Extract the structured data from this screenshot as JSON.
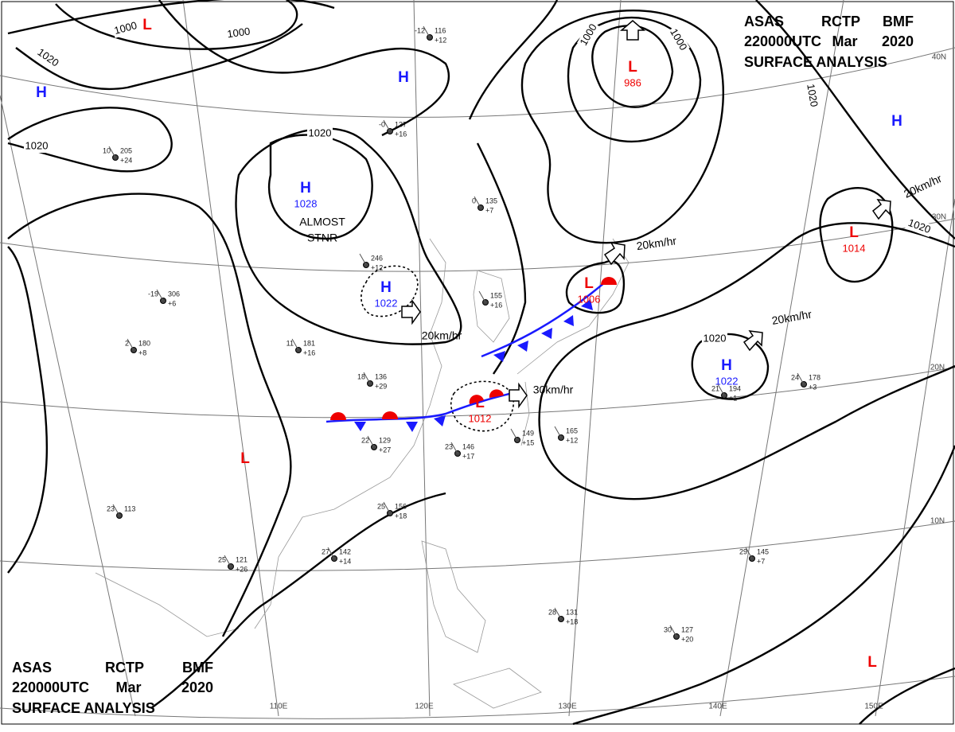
{
  "header": {
    "line1": [
      "ASAS",
      "RCTP",
      "BMF"
    ],
    "line2": [
      "220000UTC",
      "Mar",
      "2020"
    ],
    "line3": "SURFACE ANALYSIS"
  },
  "systems": [
    {
      "type": "L"
    },
    {
      "type": "H"
    },
    {
      "type": "H"
    },
    {
      "type": "H",
      "pressure": "1028"
    },
    {
      "type": "H",
      "pressure": "1022"
    },
    {
      "type": "L",
      "pressure": "986"
    },
    {
      "type": "L",
      "pressure": "1006"
    },
    {
      "type": "L",
      "pressure": "1014"
    },
    {
      "type": "H",
      "pressure": "1022"
    },
    {
      "type": "L",
      "pressure": "1012"
    },
    {
      "type": "L"
    },
    {
      "type": "L"
    },
    {
      "type": "H"
    }
  ],
  "isobar_labels": [
    "1000",
    "1000",
    "1020",
    "1020",
    "1020",
    "1000",
    "1000",
    "1020",
    "1020",
    "1020"
  ],
  "motion_labels": [
    "20km/hr",
    "30km/hr",
    "20km/hr",
    "20km/hr",
    "20km/hr"
  ],
  "note": [
    "ALMOST",
    "STNR"
  ],
  "latitude_labels": [
    "40N",
    "30N",
    "20N",
    "10N"
  ],
  "longitude_labels": [
    "110E",
    "120E",
    "130E",
    "140E",
    "150E"
  ],
  "stations": [
    {
      "temp": "-12",
      "pressure": "116",
      "tendency": "+12"
    },
    {
      "temp": "-0",
      "pressure": "137",
      "tendency": "+16"
    },
    {
      "temp": "0",
      "pressure": "135",
      "tendency": "+7"
    },
    {
      "temp": "10",
      "pressure": "205",
      "tendency": "+24"
    },
    {
      "temp": "-19",
      "pressure": "306",
      "tendency": "+6"
    },
    {
      "temp": "2",
      "pressure": "180",
      "tendency": "+8"
    },
    {
      "temp": "11",
      "pressure": "181",
      "tendency": "+16"
    },
    {
      "pressure": "246",
      "tendency": "+12"
    },
    {
      "temp": "18",
      "pressure": "136",
      "tendency": "+29"
    },
    {
      "temp": "22",
      "pressure": "129",
      "tendency": "+27"
    },
    {
      "temp": "25",
      "pressure": "156",
      "tendency": "+18"
    },
    {
      "temp": "23",
      "pressure": "146",
      "tendency": "+17"
    },
    {
      "pressure": "149",
      "tendency": "+15"
    },
    {
      "pressure": "165",
      "tendency": "+12"
    },
    {
      "temp": "21",
      "pressure": "194",
      "tendency": "+1"
    },
    {
      "temp": "24",
      "pressure": "178",
      "tendency": "+3"
    },
    {
      "temp": "29",
      "pressure": "145",
      "tendency": "+7"
    },
    {
      "temp": "30",
      "pressure": "127",
      "tendency": "+20"
    },
    {
      "temp": "28",
      "pressure": "131",
      "tendency": "+18"
    },
    {
      "temp": "25",
      "pressure": "121",
      "tendency": "+26"
    },
    {
      "temp": "27",
      "pressure": "142",
      "tendency": "+14"
    },
    {
      "temp": "23",
      "pressure": "113"
    },
    {
      "pressure": "155",
      "tendency": "+16"
    }
  ]
}
